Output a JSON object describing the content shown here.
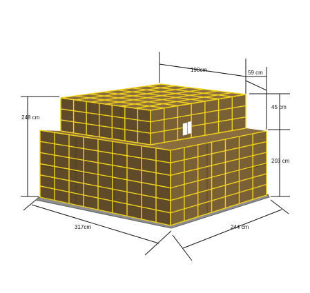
{
  "dimensions": {
    "top_length": "198cm",
    "top_offset": "59 cm",
    "total_height": "248 cm",
    "upper_height": "45 cm",
    "lower_height": "203 cm",
    "base_length": "317cm",
    "base_width": "244 cm"
  },
  "colors": {
    "cargo": "#7a6035",
    "cargo_dark": "#5f4b29",
    "cargo_top": "#8a6d3e",
    "net": "#f2d21b",
    "pallet": "#8f8f8f",
    "pallet_edge": "#5a5a5a",
    "dim_line": "#111111"
  }
}
